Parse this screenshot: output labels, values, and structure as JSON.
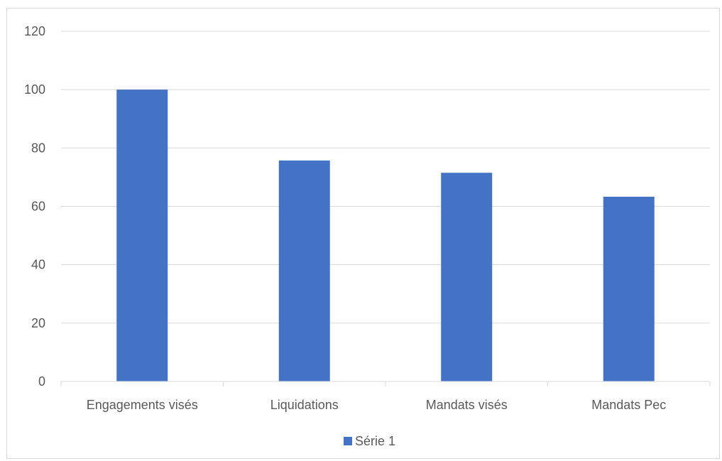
{
  "chart_data": {
    "type": "bar",
    "categories": [
      "Engagements visés",
      "Liquidations",
      "Mandats visés",
      "Mandats Pec"
    ],
    "series": [
      {
        "name": "Série 1",
        "values": [
          100,
          75.7,
          71.5,
          63.3
        ],
        "color": "#4472c4"
      }
    ],
    "title": "",
    "xlabel": "",
    "ylabel": "",
    "ylim": [
      0,
      120
    ],
    "yticks": [
      0,
      20,
      40,
      60,
      80,
      100,
      120
    ],
    "grid": true,
    "legend_position": "bottom"
  }
}
